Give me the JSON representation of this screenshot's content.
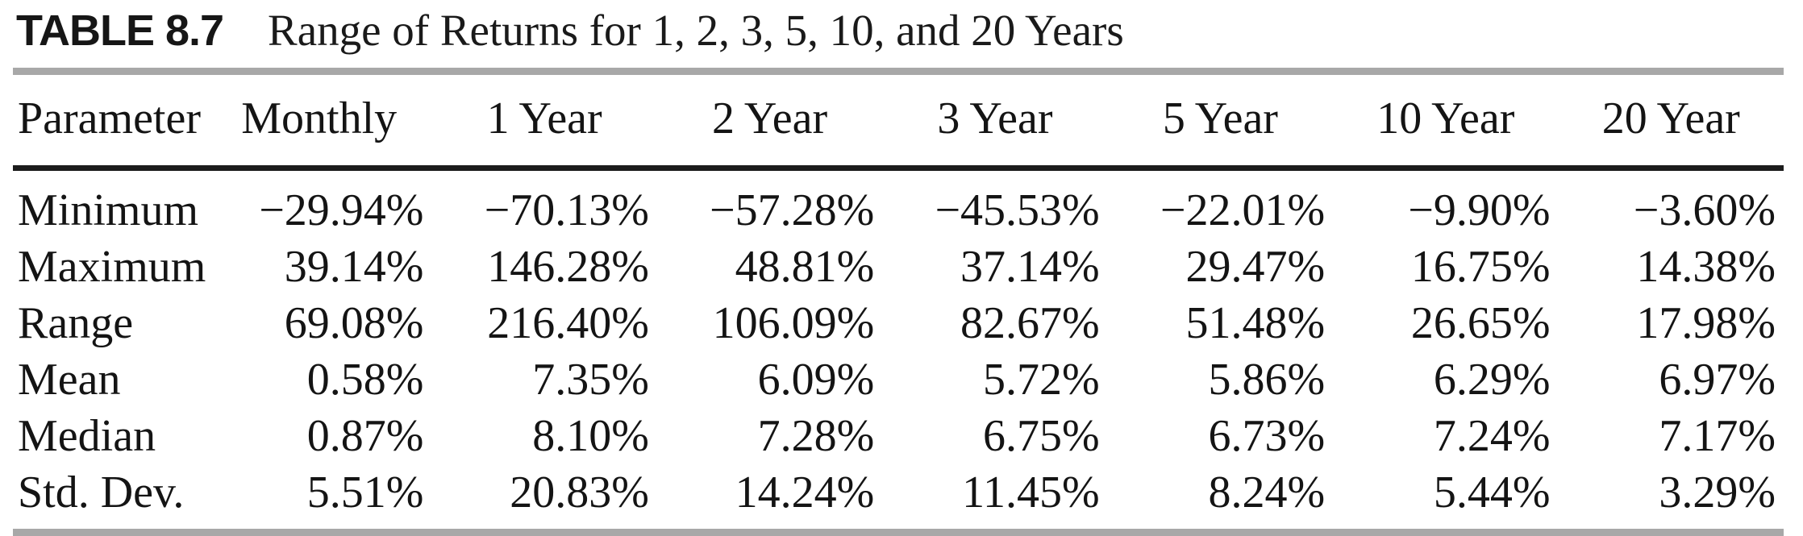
{
  "caption": {
    "table_label": "TABLE 8.7",
    "title": "Range of Returns for 1, 2, 3, 5, 10, and 20 Years"
  },
  "table": {
    "columns": [
      "Parameter",
      "Monthly",
      "1 Year",
      "2 Year",
      "3 Year",
      "5 Year",
      "10 Year",
      "20 Year"
    ],
    "rows": [
      {
        "label": "Minimum",
        "values": [
          "−29.94%",
          "−70.13%",
          "−57.28%",
          "−45.53%",
          "−22.01%",
          "−9.90%",
          "−3.60%"
        ]
      },
      {
        "label": "Maximum",
        "values": [
          "39.14%",
          "146.28%",
          "48.81%",
          "37.14%",
          "29.47%",
          "16.75%",
          "14.38%"
        ]
      },
      {
        "label": "Range",
        "values": [
          "69.08%",
          "216.40%",
          "106.09%",
          "82.67%",
          "51.48%",
          "26.65%",
          "17.98%"
        ]
      },
      {
        "label": "Mean",
        "values": [
          "0.58%",
          "7.35%",
          "6.09%",
          "5.72%",
          "5.86%",
          "6.29%",
          "6.97%"
        ]
      },
      {
        "label": "Median",
        "values": [
          "0.87%",
          "8.10%",
          "7.28%",
          "6.75%",
          "6.73%",
          "7.24%",
          "7.17%"
        ]
      },
      {
        "label": "Std. Dev.",
        "values": [
          "5.51%",
          "20.83%",
          "14.24%",
          "11.45%",
          "8.24%",
          "5.44%",
          "3.29%"
        ]
      }
    ]
  },
  "colors": {
    "rule_gray": "#a8a8a8",
    "rule_black": "#1c1c1c",
    "text": "#141414"
  }
}
